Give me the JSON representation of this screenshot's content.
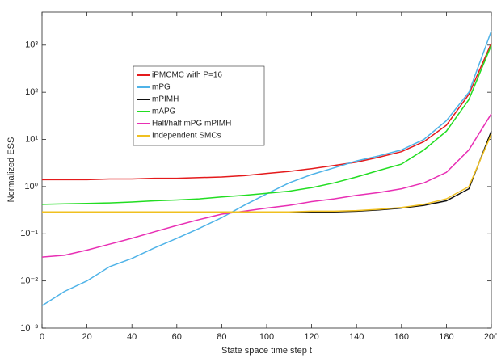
{
  "chart_data": {
    "type": "line",
    "xlabel": "State space time step t",
    "ylabel": "Normalized ESS",
    "yscale": "log",
    "x": [
      0,
      10,
      20,
      30,
      40,
      50,
      60,
      70,
      80,
      90,
      100,
      110,
      120,
      130,
      140,
      150,
      160,
      170,
      180,
      190,
      200
    ],
    "series": [
      {
        "name": "iPMCMC with P=16",
        "color": "#e41a1c",
        "values": [
          1.4,
          1.4,
          1.4,
          1.45,
          1.45,
          1.5,
          1.5,
          1.55,
          1.6,
          1.7,
          1.9,
          2.1,
          2.4,
          2.8,
          3.3,
          4.2,
          5.5,
          9,
          20,
          90,
          1100
        ]
      },
      {
        "name": "mPG",
        "color": "#4fb3e8",
        "values": [
          0.003,
          0.006,
          0.01,
          0.02,
          0.03,
          0.05,
          0.08,
          0.13,
          0.22,
          0.4,
          0.7,
          1.2,
          1.8,
          2.5,
          3.5,
          4.5,
          6,
          10,
          25,
          100,
          2000
        ]
      },
      {
        "name": "mPIMH",
        "color": "#111111",
        "values": [
          0.28,
          0.28,
          0.28,
          0.28,
          0.28,
          0.28,
          0.28,
          0.28,
          0.28,
          0.28,
          0.28,
          0.28,
          0.29,
          0.29,
          0.3,
          0.32,
          0.35,
          0.4,
          0.5,
          0.9,
          15
        ]
      },
      {
        "name": "mAPG",
        "color": "#22dd22",
        "values": [
          0.42,
          0.43,
          0.44,
          0.45,
          0.47,
          0.5,
          0.52,
          0.55,
          0.6,
          0.65,
          0.72,
          0.8,
          0.95,
          1.2,
          1.6,
          2.2,
          3,
          6,
          15,
          70,
          1000
        ]
      },
      {
        "name": "Half/half mPG mPIMH",
        "color": "#e82fb4",
        "values": [
          0.032,
          0.035,
          0.045,
          0.06,
          0.08,
          0.11,
          0.15,
          0.2,
          0.26,
          0.3,
          0.35,
          0.4,
          0.48,
          0.55,
          0.65,
          0.75,
          0.9,
          1.2,
          2,
          6,
          35
        ]
      },
      {
        "name": "Independent SMCs",
        "color": "#f0c020",
        "values": [
          0.29,
          0.29,
          0.29,
          0.29,
          0.29,
          0.29,
          0.29,
          0.29,
          0.29,
          0.29,
          0.29,
          0.29,
          0.3,
          0.3,
          0.31,
          0.33,
          0.36,
          0.42,
          0.55,
          1,
          13
        ]
      }
    ],
    "xlim": [
      0,
      200
    ],
    "xticks": [
      0,
      20,
      40,
      60,
      80,
      100,
      120,
      140,
      160,
      180,
      200
    ],
    "ylim": [
      0.001,
      5000
    ],
    "yticks": [
      {
        "value": 0.001,
        "label": "10⁻³"
      },
      {
        "value": 0.01,
        "label": "10⁻²"
      },
      {
        "value": 0.1,
        "label": "10⁻¹"
      },
      {
        "value": 1,
        "label": "10⁰"
      },
      {
        "value": 10,
        "label": "10¹"
      },
      {
        "value": 100,
        "label": "10²"
      },
      {
        "value": 1000,
        "label": "10³"
      }
    ],
    "legend": true
  }
}
